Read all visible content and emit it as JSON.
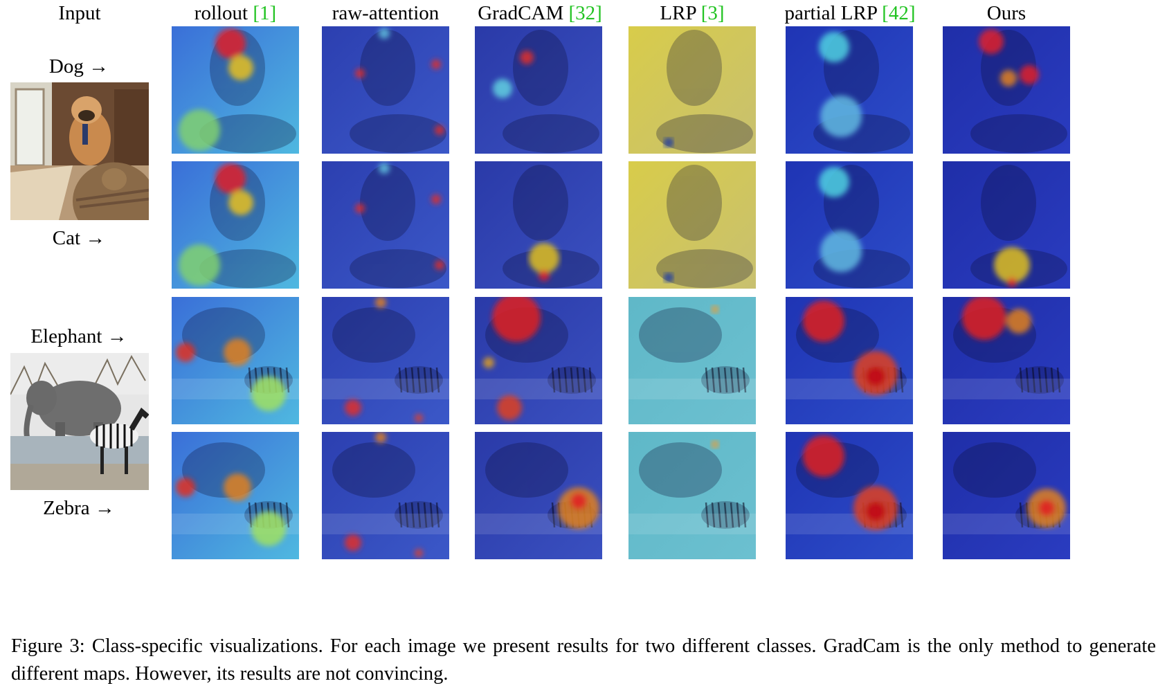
{
  "figure": {
    "columns": [
      {
        "label": "Input",
        "cite": ""
      },
      {
        "label": "rollout ",
        "cite": "[1]"
      },
      {
        "label": "raw-attention",
        "cite": ""
      },
      {
        "label": "GradCAM ",
        "cite": "[32]"
      },
      {
        "label": "LRP ",
        "cite": "[3]"
      },
      {
        "label": "partial LRP ",
        "cite": "[42]"
      },
      {
        "label": "Ours",
        "cite": ""
      }
    ],
    "class_labels": {
      "dog": "Dog →",
      "cat": "Cat →",
      "elephant": "Elephant →",
      "zebra": "Zebra →"
    },
    "caption": "Figure 3: Class-specific visualizations. For each image we present results for two different classes. GradCam is the only method to generate different maps. However, its results are not convincing."
  },
  "colors": {
    "citation": "#22c322",
    "heat_low": "#1a2fb8",
    "heat_high": "#e0101a"
  }
}
